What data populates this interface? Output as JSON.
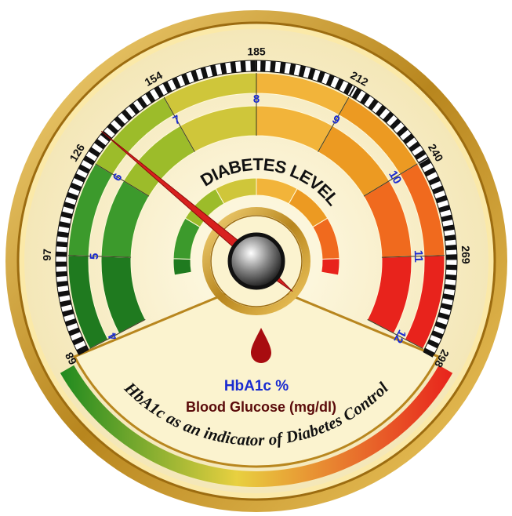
{
  "chart_data": {
    "type": "gauge",
    "title": "DIABETES LEVEL",
    "value": 6.3,
    "ylim": [
      4,
      12
    ],
    "yticks": [
      4,
      5,
      6,
      7,
      8,
      9,
      10,
      11,
      12
    ],
    "y2ticks": [
      {
        "value": 4,
        "label": "68"
      },
      {
        "value": 5,
        "label": "97"
      },
      {
        "value": 6,
        "label": "126"
      },
      {
        "value": 7,
        "label": "154"
      },
      {
        "value": 8,
        "label": "185"
      },
      {
        "value": 9,
        "label": "212"
      },
      {
        "value": 10,
        "label": "240"
      },
      {
        "value": 11,
        "label": "269"
      },
      {
        "value": 12,
        "label": "298"
      }
    ],
    "ylabel": "HbA1c %",
    "y2label": "Blood Glucose (mg/dl)",
    "subtitle": "HbA1c as an indicator of Diabetes Control",
    "band_colors": [
      "#1f7a1f",
      "#3c9a2c",
      "#9cbc2a",
      "#cfc63a",
      "#f2b43a",
      "#ec9a22",
      "#f06a1e",
      "#e8231c"
    ],
    "needle_color": "#d8201e"
  }
}
